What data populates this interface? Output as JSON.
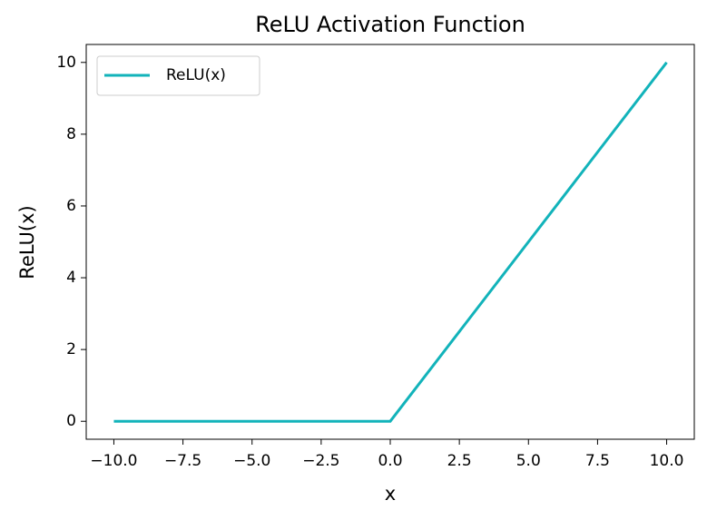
{
  "chart_data": {
    "type": "line",
    "title": "ReLU Activation Function",
    "x_label": "x",
    "y_label": "ReLU(x)",
    "x": [
      -10,
      0,
      10
    ],
    "series": [
      {
        "name": "ReLU(x)",
        "color": "#12b3ba",
        "values": [
          0,
          0,
          10
        ]
      }
    ],
    "xlim": [
      -11,
      11
    ],
    "ylim": [
      -0.5,
      10.5
    ],
    "xticks": [
      {
        "value": -10,
        "label": "−10.0"
      },
      {
        "value": -7.5,
        "label": "−7.5"
      },
      {
        "value": -5,
        "label": "−5.0"
      },
      {
        "value": -2.5,
        "label": "−2.5"
      },
      {
        "value": 0,
        "label": "0.0"
      },
      2.5,
      {
        "value": 5,
        "label": "5.0"
      },
      7.5,
      {
        "value": 10,
        "label": "10.0"
      }
    ],
    "yticks": [
      0,
      2,
      4,
      6,
      8,
      10
    ],
    "legend": "upper left"
  }
}
